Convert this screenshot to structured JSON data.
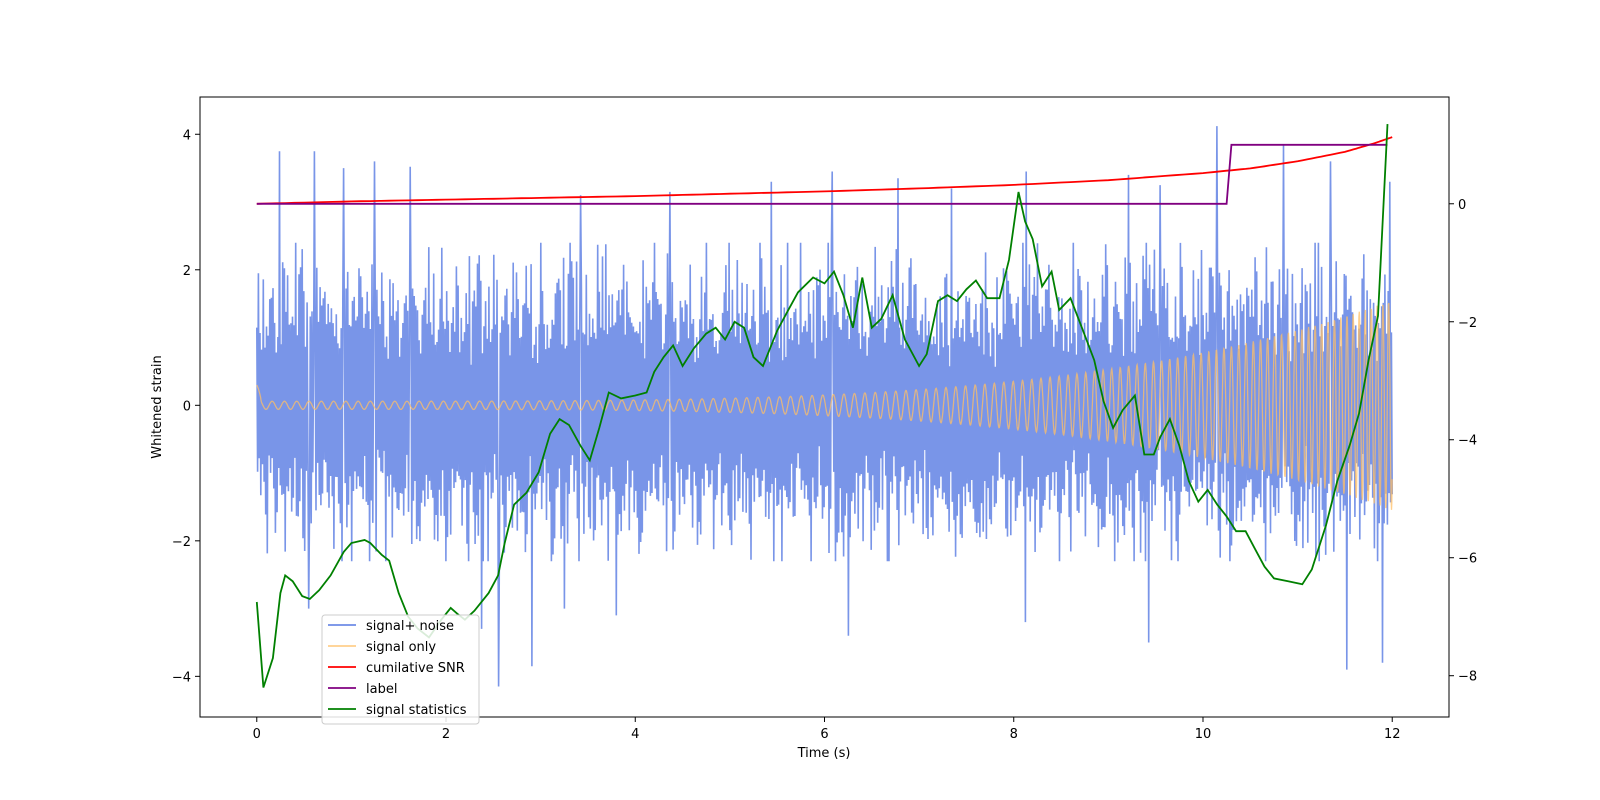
{
  "chart_data": {
    "type": "line",
    "xlabel": "Time (s)",
    "ylabel_left": "Whitened strain",
    "ylabel_right": "",
    "xlim": [
      -0.6,
      12.6
    ],
    "ylim_left": [
      -4.6,
      4.55
    ],
    "ylim_right": [
      -8.7,
      1.81
    ],
    "xticks": [
      0,
      2,
      4,
      6,
      8,
      10,
      12
    ],
    "yticks_left": [
      -4,
      -2,
      0,
      2,
      4
    ],
    "yticks_right": [
      -8,
      -6,
      -4,
      -2,
      0
    ],
    "grid": false,
    "legend_placement": "lower-left",
    "noise_band": {
      "x_start": 0.0,
      "x_end": 12.0,
      "typical_min": -2.3,
      "typical_max": 2.4,
      "samples": 1400
    },
    "noise_spikes": [
      {
        "x": 0.24,
        "y": 3.75
      },
      {
        "x": 0.61,
        "y": 3.75
      },
      {
        "x": 0.92,
        "y": 3.5
      },
      {
        "x": 1.24,
        "y": 3.6
      },
      {
        "x": 1.62,
        "y": 3.52
      },
      {
        "x": 2.56,
        "y": 3.3
      },
      {
        "x": 3.42,
        "y": 3.1
      },
      {
        "x": 4.37,
        "y": 3.15
      },
      {
        "x": 5.44,
        "y": 3.3
      },
      {
        "x": 6.08,
        "y": 3.45
      },
      {
        "x": 6.78,
        "y": 3.35
      },
      {
        "x": 7.34,
        "y": 3.2
      },
      {
        "x": 8.13,
        "y": 3.45
      },
      {
        "x": 9.21,
        "y": 3.4
      },
      {
        "x": 9.55,
        "y": 3.25
      },
      {
        "x": 10.15,
        "y": 4.12
      },
      {
        "x": 10.85,
        "y": 3.85
      },
      {
        "x": 11.35,
        "y": 3.6
      },
      {
        "x": 11.97,
        "y": 3.3
      },
      {
        "x": 2.38,
        "y": -3.3
      },
      {
        "x": 2.56,
        "y": -4.15
      },
      {
        "x": 2.91,
        "y": -3.85
      },
      {
        "x": 3.25,
        "y": -3.0
      },
      {
        "x": 3.8,
        "y": -3.1
      },
      {
        "x": 6.25,
        "y": -3.4
      },
      {
        "x": 8.12,
        "y": -3.2
      },
      {
        "x": 9.43,
        "y": -3.5
      },
      {
        "x": 11.52,
        "y": -3.9
      },
      {
        "x": 11.9,
        "y": -3.8
      },
      {
        "x": 0.55,
        "y": -3.0
      }
    ],
    "signal_only": {
      "start_amplitude": 0.06,
      "end_amplitude": 1.55,
      "start_period": 0.13,
      "end_period": 0.06
    },
    "series": [
      {
        "name": "signal+ noise",
        "color": "#6e8ce6",
        "axis": "left",
        "kind": "noise"
      },
      {
        "name": "signal only",
        "color": "#ffbf66",
        "axis": "left",
        "kind": "chirp"
      },
      {
        "name": "cumilative SNR",
        "color": "#ff0000",
        "axis": "right",
        "x": [
          0,
          1,
          2,
          3,
          4,
          5,
          6,
          7,
          8,
          9,
          10,
          10.5,
          11,
          11.5,
          11.8,
          12
        ],
        "y": [
          0.0,
          0.04,
          0.07,
          0.1,
          0.13,
          0.17,
          0.21,
          0.26,
          0.32,
          0.4,
          0.52,
          0.6,
          0.72,
          0.88,
          1.02,
          1.13
        ]
      },
      {
        "name": "label",
        "color": "#800080",
        "axis": "right",
        "x": [
          0,
          10.25,
          10.3,
          11.95
        ],
        "y": [
          0,
          0,
          1,
          1
        ]
      },
      {
        "name": "signal statistics",
        "color": "#008000",
        "axis": "right",
        "x": [
          0,
          0.07,
          0.17,
          0.25,
          0.3,
          0.38,
          0.48,
          0.56,
          0.66,
          0.78,
          0.92,
          1.0,
          1.14,
          1.2,
          1.32,
          1.4,
          1.5,
          1.6,
          1.7,
          1.82,
          1.95,
          2.05,
          2.12,
          2.2,
          2.3,
          2.45,
          2.55,
          2.62,
          2.72,
          2.85,
          2.98,
          3.1,
          3.2,
          3.3,
          3.42,
          3.52,
          3.62,
          3.72,
          3.85,
          4.0,
          4.12,
          4.2,
          4.3,
          4.4,
          4.5,
          4.62,
          4.75,
          4.85,
          4.95,
          5.05,
          5.15,
          5.25,
          5.35,
          5.5,
          5.6,
          5.72,
          5.88,
          6.0,
          6.1,
          6.2,
          6.3,
          6.4,
          6.5,
          6.6,
          6.72,
          6.85,
          7.0,
          7.08,
          7.2,
          7.3,
          7.4,
          7.5,
          7.6,
          7.72,
          7.85,
          7.95,
          8.05,
          8.12,
          8.2,
          8.3,
          8.4,
          8.48,
          8.6,
          8.72,
          8.85,
          8.95,
          9.05,
          9.15,
          9.28,
          9.38,
          9.48,
          9.55,
          9.65,
          9.75,
          9.85,
          9.95,
          10.05,
          10.15,
          10.25,
          10.35,
          10.45,
          10.55,
          10.65,
          10.75,
          10.9,
          11.05,
          11.15,
          11.3,
          11.42,
          11.55,
          11.65,
          11.75,
          11.85,
          11.95
        ],
        "y": [
          -6.75,
          -8.2,
          -7.7,
          -6.6,
          -6.3,
          -6.4,
          -6.65,
          -6.7,
          -6.55,
          -6.3,
          -5.9,
          -5.75,
          -5.7,
          -5.75,
          -5.95,
          -6.05,
          -6.6,
          -7.0,
          -7.2,
          -7.35,
          -7.05,
          -6.85,
          -6.95,
          -7.05,
          -6.9,
          -6.6,
          -6.3,
          -5.75,
          -5.1,
          -4.9,
          -4.55,
          -3.9,
          -3.65,
          -3.75,
          -4.1,
          -4.35,
          -3.8,
          -3.2,
          -3.3,
          -3.25,
          -3.2,
          -2.85,
          -2.6,
          -2.4,
          -2.75,
          -2.45,
          -2.2,
          -2.1,
          -2.3,
          -2.0,
          -2.1,
          -2.6,
          -2.75,
          -2.15,
          -1.85,
          -1.5,
          -1.25,
          -1.35,
          -1.15,
          -1.55,
          -2.1,
          -1.25,
          -2.1,
          -1.95,
          -1.55,
          -2.3,
          -2.75,
          -2.55,
          -1.65,
          -1.55,
          -1.65,
          -1.45,
          -1.3,
          -1.6,
          -1.6,
          -0.95,
          0.2,
          -0.3,
          -0.6,
          -1.4,
          -1.15,
          -1.8,
          -1.6,
          -2.1,
          -2.65,
          -3.35,
          -3.8,
          -3.5,
          -3.25,
          -4.25,
          -4.25,
          -3.95,
          -3.65,
          -4.1,
          -4.7,
          -5.05,
          -4.85,
          -5.1,
          -5.3,
          -5.55,
          -5.55,
          -5.85,
          -6.15,
          -6.35,
          -6.4,
          -6.45,
          -6.2,
          -5.45,
          -4.7,
          -4.1,
          -3.55,
          -2.65,
          -1.9,
          1.35
        ]
      }
    ]
  }
}
